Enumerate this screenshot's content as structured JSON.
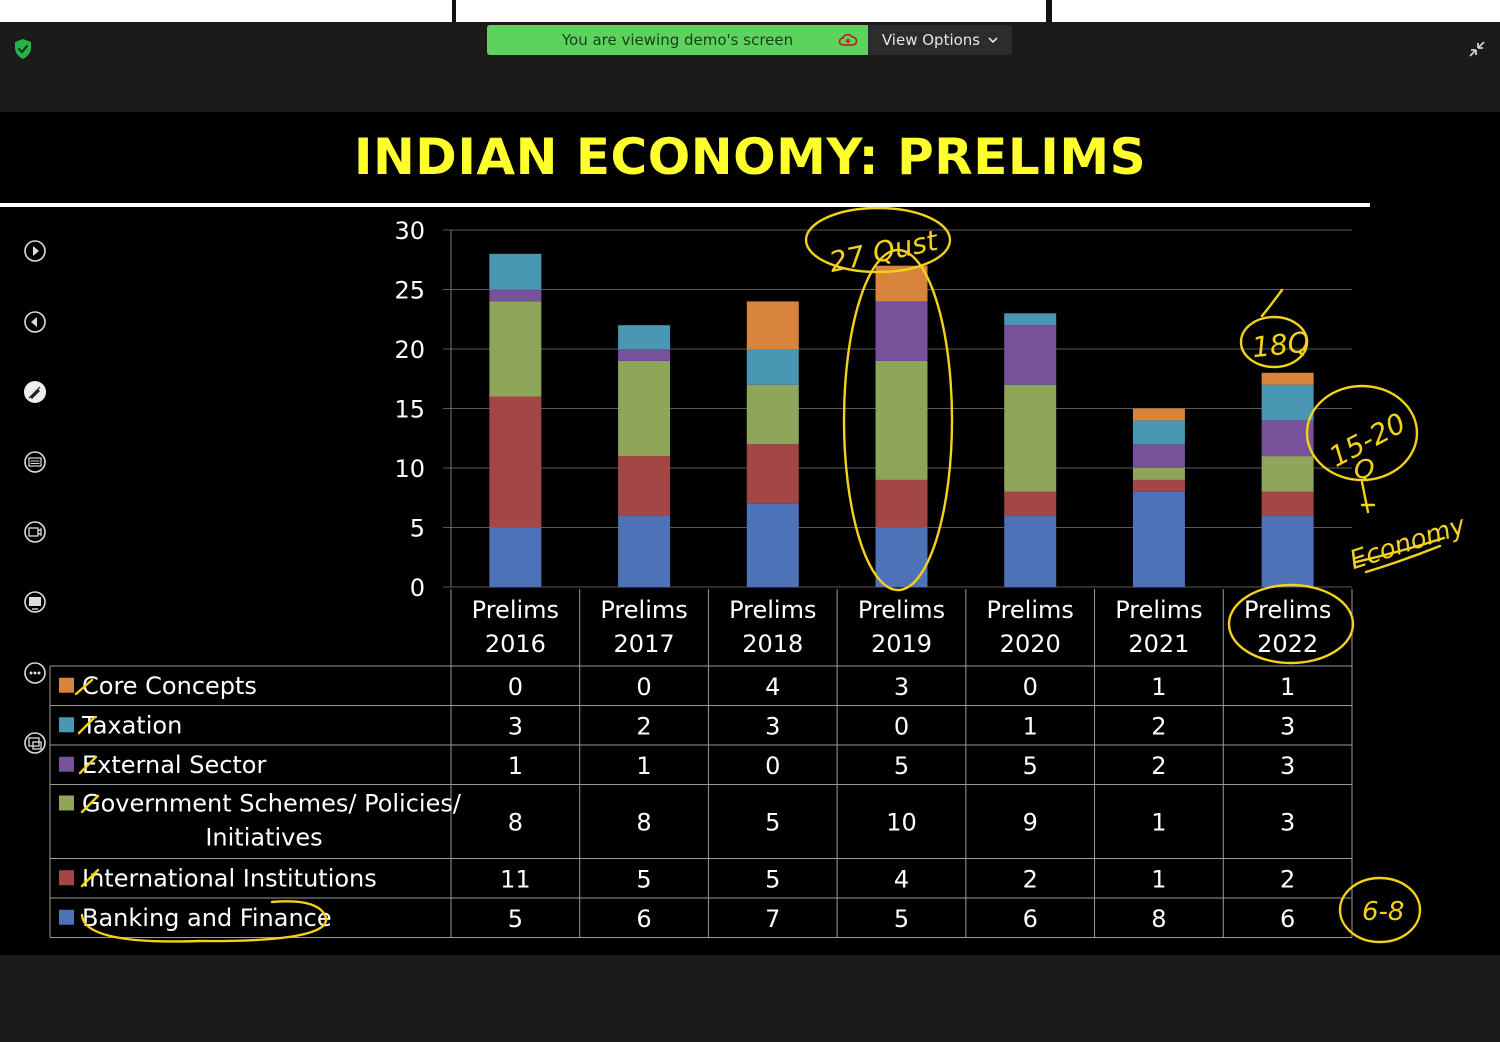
{
  "screen_share": {
    "banner_text": "You are viewing demo's screen",
    "view_options_label": "View Options"
  },
  "toolbar": {
    "tools": [
      "play-icon",
      "back-icon",
      "pen-icon",
      "subtitles-icon",
      "video-icon",
      "screen-icon",
      "more-icon",
      "present-icon"
    ]
  },
  "slide": {
    "title": "INDIAN ECONOMY: PRELIMS"
  },
  "colors": {
    "Core Concepts": "#d9843d",
    "Taxation": "#4a97b4",
    "External Sector": "#77529b",
    "Government Schemes/ Policies/ Initiatives": "#8fa65a",
    "International Institutions": "#a34646",
    "Banking and Finance": "#4d72b8",
    "accent_yellow": "#ffff2e",
    "banner_green": "#5dd35d"
  },
  "chart_data": {
    "type": "bar",
    "stacked": true,
    "title": "INDIAN ECONOMY: PRELIMS",
    "categories": [
      "Prelims 2016",
      "Prelims 2017",
      "Prelims 2018",
      "Prelims 2019",
      "Prelims 2020",
      "Prelims 2021",
      "Prelims 2022"
    ],
    "category_lines": [
      [
        "Prelims",
        "2016"
      ],
      [
        "Prelims",
        "2017"
      ],
      [
        "Prelims",
        "2018"
      ],
      [
        "Prelims",
        "2019"
      ],
      [
        "Prelims",
        "2020"
      ],
      [
        "Prelims",
        "2021"
      ],
      [
        "Prelims",
        "2022"
      ]
    ],
    "ylim": [
      0,
      30
    ],
    "yticks": [
      0,
      5,
      10,
      15,
      20,
      25,
      30
    ],
    "grid": true,
    "series": [
      {
        "name": "Core Concepts",
        "values": [
          0,
          0,
          4,
          3,
          0,
          1,
          1
        ]
      },
      {
        "name": "Taxation",
        "values": [
          3,
          2,
          3,
          0,
          1,
          2,
          3
        ]
      },
      {
        "name": "External Sector",
        "values": [
          1,
          1,
          0,
          5,
          5,
          2,
          3
        ]
      },
      {
        "name": "Government Schemes/ Policies/ Initiatives",
        "name_lines": [
          "Government Schemes/ Policies/",
          "Initiatives"
        ],
        "values": [
          8,
          8,
          5,
          10,
          9,
          1,
          3
        ]
      },
      {
        "name": "International Institutions",
        "values": [
          11,
          5,
          5,
          4,
          2,
          1,
          2
        ]
      },
      {
        "name": "Banking and Finance",
        "values": [
          5,
          6,
          7,
          5,
          6,
          8,
          6
        ]
      }
    ],
    "data_table": true
  },
  "annotations": {
    "note_2019": "27 Qust",
    "note_2022_total": "18Q",
    "note_range": "15-20",
    "note_q": "Q",
    "note_economy": "Economy",
    "note_banking": "6-8"
  }
}
